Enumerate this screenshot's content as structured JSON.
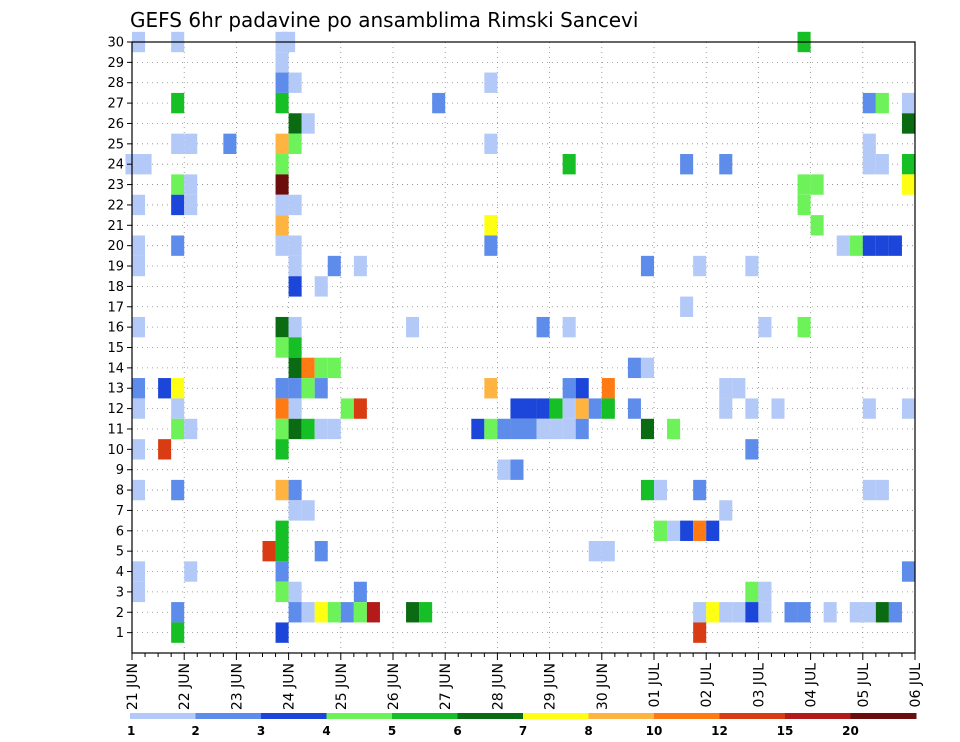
{
  "chart_data": {
    "type": "heatmap",
    "title": "GEFS 6hr padavine po ansamblima Rimski Sancevi",
    "y_ticks": [
      "1",
      "2",
      "3",
      "4",
      "5",
      "6",
      "7",
      "8",
      "9",
      "10",
      "11",
      "12",
      "13",
      "14",
      "15",
      "16",
      "17",
      "18",
      "19",
      "20",
      "21",
      "22",
      "23",
      "24",
      "25",
      "26",
      "27",
      "28",
      "29",
      "30"
    ],
    "x_ticks": [
      "21 JUN",
      "22 JUN",
      "23 JUN",
      "24 JUN",
      "25 JUN",
      "26 JUN",
      "27 JUN",
      "28 JUN",
      "29 JUN",
      "30 JUN",
      "01 JUL",
      "02 JUL",
      "03 JUL",
      "04 JUL",
      "05 JUL",
      "06 JUL"
    ],
    "x_steps_per_day": 4,
    "x_range_steps": [
      0,
      60
    ],
    "y_range": [
      0,
      30
    ],
    "grid": true,
    "legend_position": "bottom",
    "legend_bins": [
      {
        "label": "1",
        "color": "#b3c9f7"
      },
      {
        "label": "2",
        "color": "#5e8ceb"
      },
      {
        "label": "3",
        "color": "#1c46d9"
      },
      {
        "label": "4",
        "color": "#6ef25a"
      },
      {
        "label": "5",
        "color": "#16bf25"
      },
      {
        "label": "6",
        "color": "#0a6b13"
      },
      {
        "label": "7",
        "color": "#ffff14"
      },
      {
        "label": "8",
        "color": "#ffb340"
      },
      {
        "label": "10",
        "color": "#ff7a12"
      },
      {
        "label": "12",
        "color": "#d93c12"
      },
      {
        "label": "15",
        "color": "#b31a1a"
      },
      {
        "label": "20",
        "color": "#6b0d0d"
      }
    ],
    "legend_end_labels": {
      "first": "1",
      "last": "20"
    },
    "cells": [
      [
        0.5,
        30,
        0
      ],
      [
        3.5,
        30,
        0
      ],
      [
        11.5,
        30,
        0
      ],
      [
        12,
        30,
        0
      ],
      [
        51.5,
        30,
        4
      ],
      [
        11.5,
        29,
        0
      ],
      [
        11.5,
        28,
        1
      ],
      [
        12.5,
        28,
        0
      ],
      [
        27.5,
        28,
        0
      ],
      [
        3.5,
        27,
        4
      ],
      [
        11.5,
        27,
        4
      ],
      [
        23.5,
        27,
        1
      ],
      [
        56.5,
        27,
        1
      ],
      [
        57.5,
        27,
        3
      ],
      [
        59.5,
        27,
        0
      ],
      [
        12.5,
        26,
        5
      ],
      [
        13.5,
        26,
        0
      ],
      [
        59.5,
        26,
        5
      ],
      [
        3.5,
        25,
        0
      ],
      [
        4.5,
        25,
        0
      ],
      [
        7.5,
        25,
        1
      ],
      [
        11.5,
        25,
        7
      ],
      [
        12.5,
        25,
        3
      ],
      [
        27.5,
        25,
        0
      ],
      [
        56.5,
        25,
        0
      ],
      [
        0,
        24,
        0
      ],
      [
        1,
        24,
        0
      ],
      [
        11.5,
        24,
        3
      ],
      [
        33.5,
        24,
        4
      ],
      [
        42.5,
        24,
        1
      ],
      [
        45.5,
        24,
        1
      ],
      [
        56.5,
        24,
        0
      ],
      [
        57.5,
        24,
        0
      ],
      [
        59.5,
        24,
        4
      ],
      [
        3.5,
        23,
        3
      ],
      [
        4.5,
        23,
        0
      ],
      [
        11.5,
        23,
        11
      ],
      [
        51.5,
        23,
        3
      ],
      [
        52.5,
        23,
        3
      ],
      [
        59.5,
        23,
        6
      ],
      [
        0.5,
        22,
        0
      ],
      [
        3.5,
        22,
        2
      ],
      [
        4.5,
        22,
        0
      ],
      [
        11.5,
        22,
        0
      ],
      [
        12.5,
        22,
        0
      ],
      [
        51.5,
        22,
        3
      ],
      [
        11.5,
        21,
        7
      ],
      [
        27.5,
        21,
        6
      ],
      [
        52.5,
        21,
        3
      ],
      [
        0.5,
        20,
        0
      ],
      [
        3.5,
        20,
        1
      ],
      [
        11.5,
        20,
        0
      ],
      [
        12.5,
        20,
        0
      ],
      [
        27.5,
        20,
        1
      ],
      [
        54.5,
        20,
        0
      ],
      [
        55.5,
        20,
        3
      ],
      [
        56.5,
        20,
        2
      ],
      [
        57.5,
        20,
        2
      ],
      [
        58.5,
        20,
        2
      ],
      [
        0.5,
        19,
        0
      ],
      [
        12.5,
        19,
        0
      ],
      [
        15.5,
        19,
        1
      ],
      [
        17.5,
        19,
        0
      ],
      [
        39.5,
        19,
        1
      ],
      [
        43.5,
        19,
        0
      ],
      [
        47.5,
        19,
        0
      ],
      [
        12.5,
        18,
        2
      ],
      [
        14.5,
        18,
        0
      ],
      [
        42.5,
        17,
        0
      ],
      [
        0.5,
        16,
        0
      ],
      [
        11.5,
        16,
        5
      ],
      [
        12.5,
        16,
        0
      ],
      [
        21.5,
        16,
        0
      ],
      [
        31.5,
        16,
        1
      ],
      [
        33.5,
        16,
        0
      ],
      [
        48.5,
        16,
        0
      ],
      [
        51.5,
        16,
        3
      ],
      [
        11.5,
        15,
        3
      ],
      [
        12.5,
        15,
        4
      ],
      [
        12.5,
        14,
        5
      ],
      [
        13.5,
        14,
        8
      ],
      [
        14.5,
        14,
        3
      ],
      [
        15.5,
        14,
        3
      ],
      [
        38.5,
        14,
        1
      ],
      [
        39.5,
        14,
        0
      ],
      [
        0.5,
        13,
        1
      ],
      [
        2.5,
        13,
        2
      ],
      [
        3.5,
        13,
        6
      ],
      [
        11.5,
        13,
        1
      ],
      [
        12.5,
        13,
        1
      ],
      [
        13.5,
        13,
        3
      ],
      [
        14.5,
        13,
        1
      ],
      [
        27.5,
        13,
        7
      ],
      [
        33.5,
        13,
        1
      ],
      [
        34.5,
        13,
        2
      ],
      [
        36.5,
        13,
        8
      ],
      [
        45.5,
        13,
        0
      ],
      [
        46.5,
        13,
        0
      ],
      [
        0.5,
        12,
        0
      ],
      [
        3.5,
        12,
        0
      ],
      [
        11.5,
        12,
        8
      ],
      [
        12.5,
        12,
        0
      ],
      [
        16.5,
        12,
        3
      ],
      [
        17.5,
        12,
        9
      ],
      [
        29.5,
        12,
        2
      ],
      [
        30.5,
        12,
        2
      ],
      [
        31.5,
        12,
        2
      ],
      [
        32.5,
        12,
        4
      ],
      [
        33.5,
        12,
        0
      ],
      [
        34.5,
        12,
        7
      ],
      [
        35.5,
        12,
        1
      ],
      [
        36.5,
        12,
        4
      ],
      [
        38.5,
        12,
        1
      ],
      [
        45.5,
        12,
        0
      ],
      [
        47.5,
        12,
        0
      ],
      [
        49.5,
        12,
        0
      ],
      [
        56.5,
        12,
        0
      ],
      [
        59.5,
        12,
        0
      ],
      [
        3.5,
        11,
        3
      ],
      [
        4.5,
        11,
        0
      ],
      [
        11.5,
        11,
        3
      ],
      [
        12.5,
        11,
        5
      ],
      [
        13.5,
        11,
        4
      ],
      [
        14.5,
        11,
        0
      ],
      [
        15.5,
        11,
        0
      ],
      [
        26.5,
        11,
        2
      ],
      [
        27.5,
        11,
        3
      ],
      [
        28.5,
        11,
        1
      ],
      [
        29.5,
        11,
        1
      ],
      [
        30.5,
        11,
        1
      ],
      [
        31.5,
        11,
        0
      ],
      [
        32.5,
        11,
        0
      ],
      [
        33.5,
        11,
        0
      ],
      [
        34.5,
        11,
        1
      ],
      [
        39.5,
        11,
        5
      ],
      [
        41.5,
        11,
        3
      ],
      [
        0.5,
        10,
        0
      ],
      [
        2.5,
        10,
        9
      ],
      [
        11.5,
        10,
        4
      ],
      [
        47.5,
        10,
        1
      ],
      [
        28.5,
        9,
        0
      ],
      [
        29.5,
        9,
        1
      ],
      [
        0.5,
        8,
        0
      ],
      [
        3.5,
        8,
        1
      ],
      [
        11.5,
        8,
        7
      ],
      [
        12.5,
        8,
        1
      ],
      [
        39.5,
        8,
        4
      ],
      [
        40.5,
        8,
        0
      ],
      [
        43.5,
        8,
        1
      ],
      [
        56.5,
        8,
        0
      ],
      [
        57.5,
        8,
        0
      ],
      [
        12.5,
        7,
        0
      ],
      [
        13.5,
        7,
        0
      ],
      [
        45.5,
        7,
        0
      ],
      [
        11.5,
        6,
        4
      ],
      [
        40.5,
        6,
        3
      ],
      [
        41.5,
        6,
        0
      ],
      [
        42.5,
        6,
        2
      ],
      [
        43.5,
        6,
        8
      ],
      [
        44.5,
        6,
        2
      ],
      [
        10.5,
        5,
        9
      ],
      [
        11.5,
        5,
        4
      ],
      [
        14.5,
        5,
        1
      ],
      [
        35.5,
        5,
        0
      ],
      [
        36.5,
        5,
        0
      ],
      [
        0.5,
        4,
        0
      ],
      [
        4.5,
        4,
        0
      ],
      [
        11.5,
        4,
        1
      ],
      [
        59.5,
        4,
        1
      ],
      [
        0.5,
        3,
        0
      ],
      [
        11.5,
        3,
        3
      ],
      [
        12.5,
        3,
        0
      ],
      [
        17.5,
        3,
        1
      ],
      [
        47.5,
        3,
        3
      ],
      [
        48.5,
        3,
        0
      ],
      [
        3.5,
        2,
        1
      ],
      [
        12.5,
        2,
        1
      ],
      [
        13.5,
        2,
        0
      ],
      [
        14.5,
        2,
        6
      ],
      [
        15.5,
        2,
        3
      ],
      [
        16.5,
        2,
        1
      ],
      [
        17.5,
        2,
        3
      ],
      [
        18.5,
        2,
        10
      ],
      [
        21.5,
        2,
        5
      ],
      [
        22.5,
        2,
        4
      ],
      [
        43.5,
        2,
        0
      ],
      [
        44.5,
        2,
        6
      ],
      [
        45.5,
        2,
        0
      ],
      [
        46.5,
        2,
        0
      ],
      [
        47.5,
        2,
        2
      ],
      [
        48.5,
        2,
        0
      ],
      [
        50.5,
        2,
        1
      ],
      [
        51.5,
        2,
        1
      ],
      [
        53.5,
        2,
        0
      ],
      [
        55.5,
        2,
        0
      ],
      [
        56.5,
        2,
        0
      ],
      [
        57.5,
        2,
        5
      ],
      [
        58.5,
        2,
        1
      ],
      [
        3.5,
        1,
        4
      ],
      [
        11.5,
        1,
        2
      ],
      [
        43.5,
        1,
        9
      ]
    ]
  }
}
